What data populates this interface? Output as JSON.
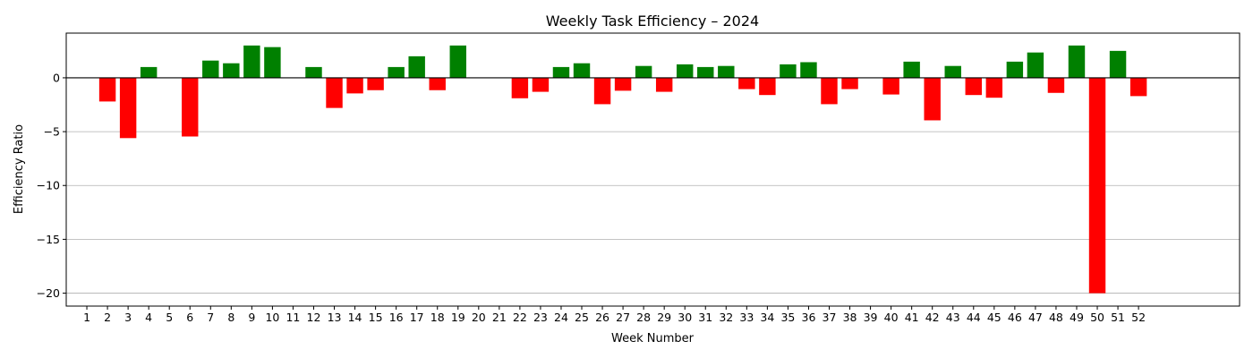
{
  "chart_data": {
    "type": "bar",
    "title": "Weekly Task Efficiency – 2024",
    "xlabel": "Week Number",
    "ylabel": "Efficiency Ratio",
    "categories": [
      "1",
      "2",
      "3",
      "4",
      "5",
      "6",
      "7",
      "8",
      "9",
      "10",
      "11",
      "12",
      "13",
      "14",
      "15",
      "16",
      "17",
      "18",
      "19",
      "20",
      "21",
      "22",
      "23",
      "24",
      "25",
      "26",
      "27",
      "28",
      "29",
      "30",
      "31",
      "32",
      "33",
      "34",
      "35",
      "36",
      "37",
      "38",
      "39",
      "40",
      "41",
      "42",
      "43",
      "44",
      "45",
      "46",
      "47",
      "48",
      "49",
      "50",
      "51",
      "52"
    ],
    "values": [
      0,
      -2.2,
      -5.6,
      1.0,
      0,
      -5.45,
      1.6,
      1.35,
      3.0,
      2.85,
      0,
      1.0,
      -2.8,
      -1.45,
      -1.15,
      1.0,
      2.0,
      -1.15,
      3.0,
      0,
      0,
      -1.9,
      -1.3,
      1.0,
      1.35,
      -2.45,
      -1.2,
      1.1,
      -1.3,
      1.25,
      1.0,
      1.1,
      -1.05,
      -1.6,
      1.25,
      1.45,
      -2.45,
      -1.05,
      0,
      -1.55,
      1.5,
      -3.95,
      1.1,
      -1.6,
      -1.85,
      1.5,
      2.35,
      -1.4,
      3.0,
      -20.0,
      2.5,
      -1.7
    ],
    "yticks": [
      0,
      -5,
      -10,
      -15,
      -20
    ],
    "ytick_labels": [
      "0",
      "−5",
      "−10",
      "−15",
      "−20"
    ],
    "ylim": [
      -21.2,
      4.15
    ],
    "xlim": [
      -1.0,
      55.9
    ],
    "grid": "y-axis horizontal gridlines",
    "legend": "none",
    "colors": {
      "positive": "#008000",
      "negative": "#ff0000",
      "zero_line": "#000000",
      "grid": "#b0b0b0"
    }
  }
}
